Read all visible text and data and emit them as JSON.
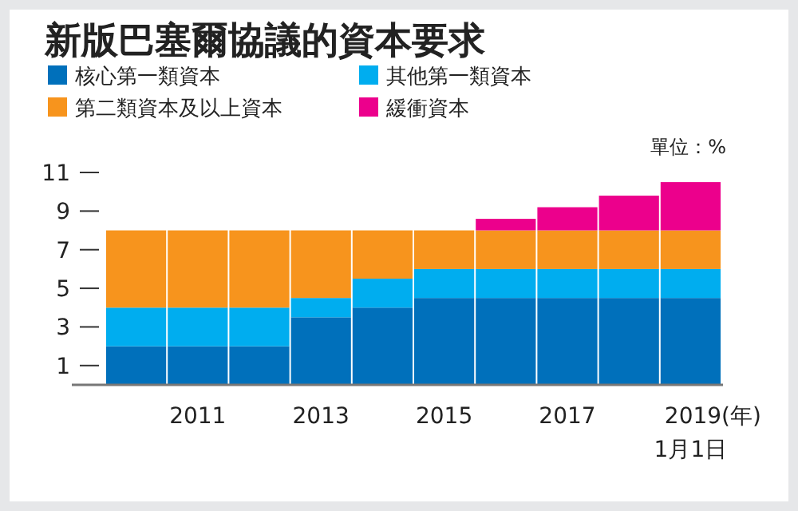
{
  "chart_data": {
    "type": "bar",
    "stacked": true,
    "title": "新版巴塞爾協議的資本要求",
    "categories": [
      null,
      "2011",
      null,
      "2013",
      null,
      "2015",
      null,
      "2017",
      null,
      "2019(年)"
    ],
    "series": [
      {
        "name": "核心第一類資本",
        "color": "#0070bb",
        "values": [
          2,
          2,
          2,
          3.5,
          4,
          4.5,
          4.5,
          4.5,
          4.5,
          4.5
        ]
      },
      {
        "name": "其他第一類資本",
        "color": "#00adef",
        "values": [
          2,
          2,
          2,
          1,
          1.5,
          1.5,
          1.5,
          1.5,
          1.5,
          1.5
        ]
      },
      {
        "name": "第二類資本及以上資本",
        "color": "#f7941d",
        "values": [
          4,
          4,
          4,
          3.5,
          2.5,
          2,
          2,
          2,
          2,
          2
        ]
      },
      {
        "name": "緩衝資本",
        "color": "#ec008c",
        "values": [
          null,
          null,
          null,
          null,
          null,
          null,
          0.6,
          1.2,
          1.8,
          2.5
        ]
      }
    ],
    "ylim": [
      0,
      11
    ],
    "yticks": [
      1,
      3,
      5,
      7,
      9,
      11
    ],
    "grid": false,
    "legend": "top",
    "annotations": [
      "單位：%",
      "1月1日"
    ]
  }
}
